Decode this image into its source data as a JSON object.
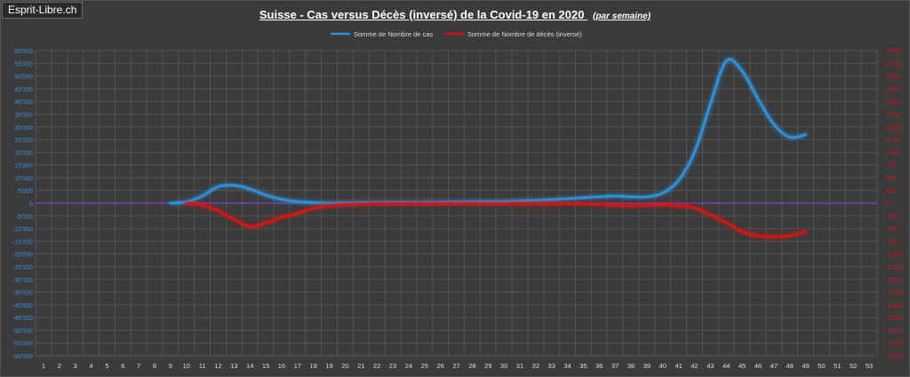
{
  "badge": "Esprit-Libre.ch",
  "title": "Suisse - Cas versus Décès (inversé) de la Covid-19 en 2020",
  "title_sub": "(par semaine)",
  "colors": {
    "cases": "#2e8fd6",
    "deaths": "#d11414",
    "zero_line": "#7a3fb8",
    "left_axis": "#3a8fd8",
    "right_axis": "#d21818",
    "grid": "#555555"
  },
  "chart_data": {
    "type": "line",
    "legend_position": "top",
    "grid": true,
    "x": [
      1,
      2,
      3,
      4,
      5,
      6,
      7,
      8,
      9,
      10,
      11,
      12,
      13,
      14,
      15,
      16,
      17,
      18,
      19,
      20,
      21,
      22,
      23,
      24,
      25,
      26,
      27,
      28,
      29,
      30,
      31,
      32,
      33,
      34,
      35,
      36,
      37,
      38,
      39,
      40,
      41,
      42,
      43,
      44,
      45,
      46,
      47,
      48,
      49,
      50,
      51,
      52,
      53
    ],
    "x_range": [
      1,
      53
    ],
    "y_left": {
      "range": [
        -60000,
        60000
      ],
      "ticks": [
        "60'000",
        "55'000",
        "50'000",
        "45'000",
        "40'000",
        "35'000",
        "30'000",
        "25'000",
        "20'000",
        "15'000",
        "10'000",
        "5'000",
        "0",
        "-5'000",
        "-10'000",
        "-15'000",
        "-20'000",
        "-25'000",
        "-30'000",
        "-35'000",
        "-40'000",
        "-45'000",
        "-50'000",
        "-55'000",
        "-60'000"
      ]
    },
    "y_right": {
      "range": [
        -3000,
        3000
      ],
      "ticks": [
        "3'000",
        "2'750",
        "2'500",
        "2'250",
        "2'000",
        "1'750",
        "1'500",
        "1'250",
        "1'000",
        "750",
        "500",
        "250",
        "0",
        "-250",
        "-500",
        "-750",
        "-1'000",
        "-1'250",
        "-1'500",
        "-1'750",
        "-2'000",
        "-2'250",
        "-2'500",
        "-2'750",
        "-3'000"
      ]
    },
    "series": [
      {
        "name": "Somme de Nombre de cas",
        "axis": "left",
        "x": [
          9,
          10,
          11,
          12,
          13,
          14,
          15,
          16,
          17,
          18,
          19,
          20,
          21,
          22,
          23,
          24,
          25,
          26,
          27,
          28,
          29,
          30,
          31,
          32,
          33,
          34,
          35,
          36,
          37,
          38,
          39,
          40,
          41,
          42,
          43,
          44,
          45,
          46,
          47,
          48,
          49
        ],
        "values": [
          0,
          500,
          2800,
          6500,
          7000,
          5600,
          3200,
          1500,
          600,
          200,
          100,
          100,
          200,
          300,
          300,
          300,
          400,
          400,
          500,
          600,
          700,
          700,
          900,
          1100,
          1400,
          1700,
          2100,
          2500,
          2800,
          2500,
          2500,
          4000,
          9000,
          20000,
          39000,
          56000,
          52000,
          41000,
          31000,
          26000,
          27000
        ]
      },
      {
        "name": "Somme de Nombre de décès (inversé)",
        "axis": "right",
        "x": [
          10,
          11,
          12,
          13,
          14,
          15,
          16,
          17,
          18,
          19,
          20,
          21,
          22,
          23,
          24,
          25,
          26,
          27,
          28,
          29,
          30,
          31,
          32,
          33,
          34,
          35,
          36,
          37,
          38,
          39,
          40,
          41,
          42,
          43,
          44,
          45,
          46,
          47,
          48,
          49
        ],
        "values": [
          -10,
          -40,
          -150,
          -320,
          -460,
          -390,
          -280,
          -200,
          -100,
          -50,
          -30,
          -20,
          -10,
          -10,
          -10,
          -10,
          -10,
          -10,
          -10,
          -10,
          -10,
          -10,
          -10,
          -10,
          -10,
          -10,
          -20,
          -40,
          -50,
          -40,
          -30,
          -50,
          -90,
          -230,
          -380,
          -560,
          -640,
          -660,
          -640,
          -560
        ]
      }
    ]
  }
}
